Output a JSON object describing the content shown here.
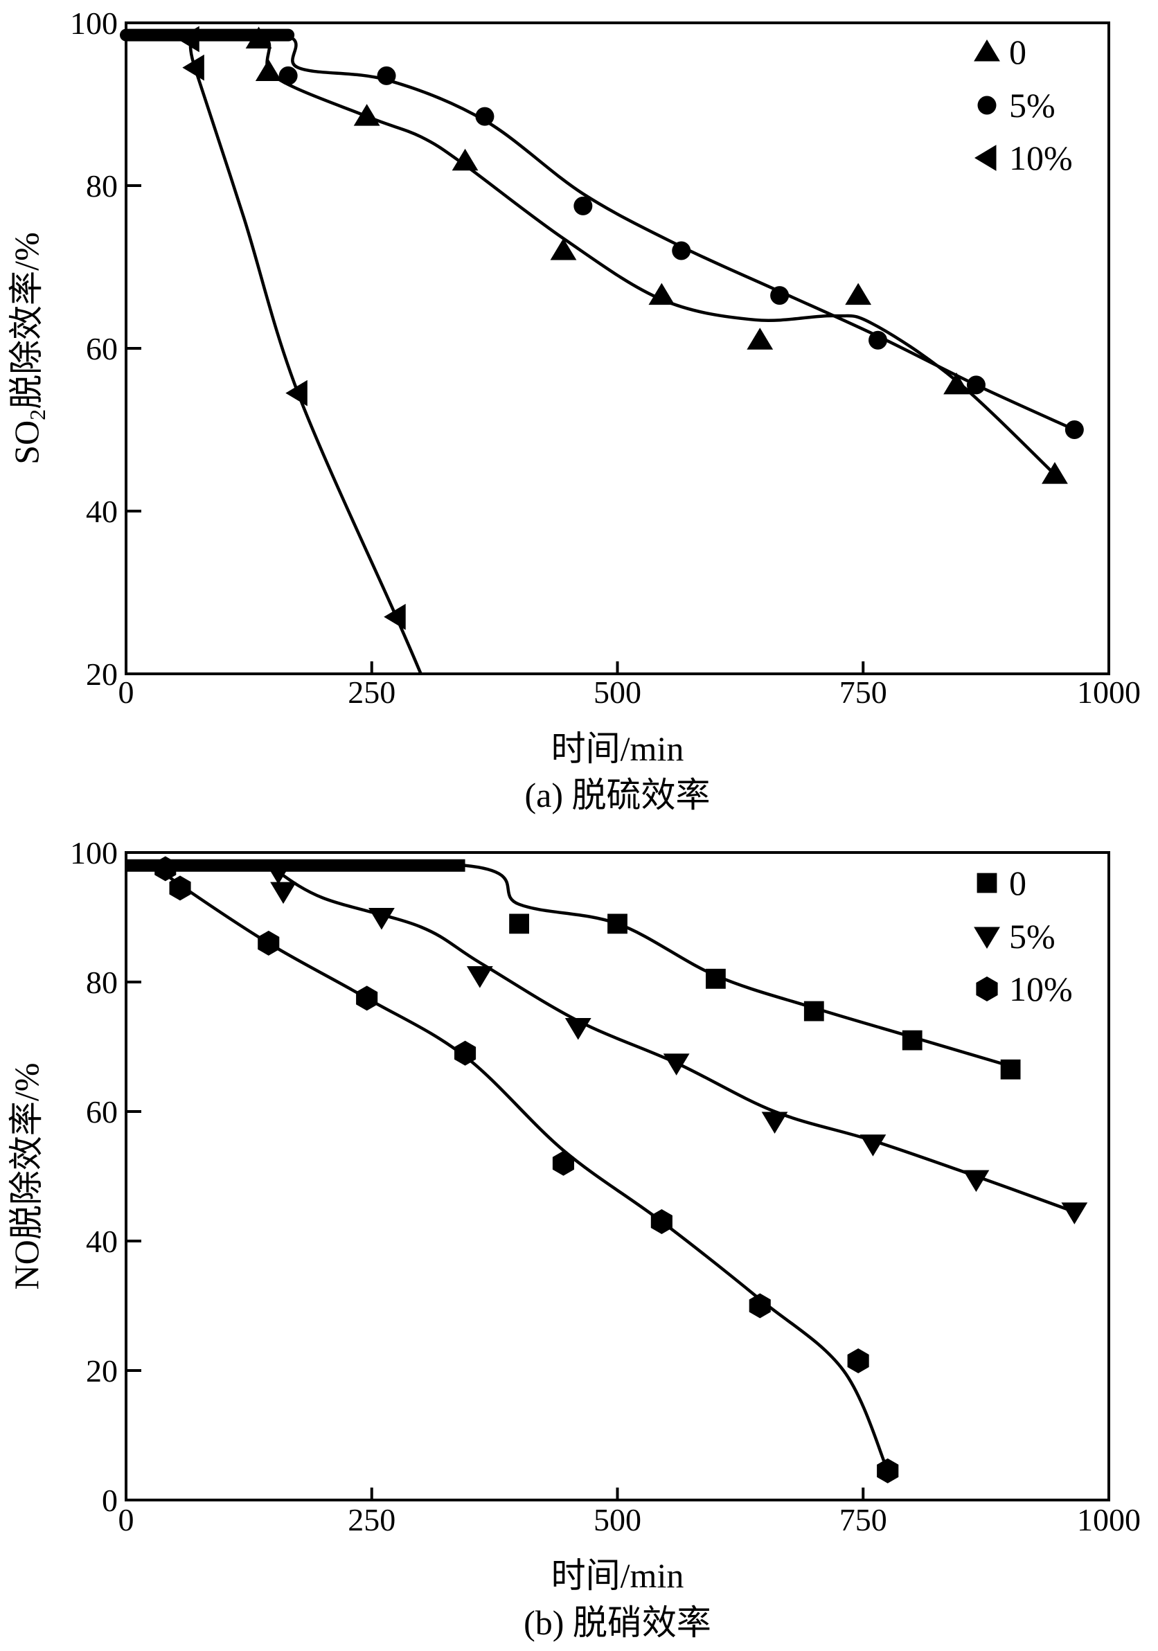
{
  "chart_data": [
    {
      "type": "line",
      "title": "(a) 脱硫效率",
      "xlabel": "时间/min",
      "ylabel": "SO2脱除效率/%",
      "ylabel_main": "SO",
      "ylabel_sub": "2",
      "ylabel_rest": "脱除效率/%",
      "xlim": [
        0,
        1000
      ],
      "ylim": [
        20,
        100
      ],
      "xticks": [
        0,
        250,
        500,
        750,
        1000
      ],
      "yticks": [
        20,
        40,
        60,
        80,
        100
      ],
      "legend_position": "top-right",
      "series": [
        {
          "name": "0",
          "marker": "triangle-up",
          "points": [
            [
              135,
              98
            ],
            [
              145,
              94
            ],
            [
              245,
              88.5
            ],
            [
              345,
              83
            ],
            [
              445,
              72
            ],
            [
              545,
              66.5
            ],
            [
              645,
              61
            ],
            [
              745,
              66.5
            ],
            [
              845,
              55.5
            ],
            [
              945,
              44.5
            ]
          ],
          "curve": [
            [
              0,
              98.5
            ],
            [
              135,
              98.5
            ],
            [
              150,
              93.5
            ],
            [
              245,
              88.5
            ],
            [
              300,
              86
            ],
            [
              345,
              82.5
            ],
            [
              445,
              73.5
            ],
            [
              545,
              66
            ],
            [
              640,
              63.5
            ],
            [
              720,
              64
            ],
            [
              760,
              63
            ],
            [
              845,
              56
            ],
            [
              945,
              44.5
            ]
          ]
        },
        {
          "name": "5%",
          "marker": "circle",
          "points": [
            [
              165,
              93.5
            ],
            [
              265,
              93.5
            ],
            [
              365,
              88.5
            ],
            [
              465,
              77.5
            ],
            [
              565,
              72
            ],
            [
              665,
              66.5
            ],
            [
              765,
              61
            ],
            [
              865,
              55.5
            ],
            [
              965,
              50
            ]
          ],
          "curve": [
            [
              0,
              98.5
            ],
            [
              160,
              98.5
            ],
            [
              175,
              94.5
            ],
            [
              265,
              93
            ],
            [
              365,
              88
            ],
            [
              465,
              79
            ],
            [
              565,
              72.5
            ],
            [
              665,
              67
            ],
            [
              765,
              61.5
            ],
            [
              865,
              55.5
            ],
            [
              965,
              50
            ]
          ]
        },
        {
          "name": "10%",
          "marker": "triangle-left",
          "points": [
            [
              65,
              98
            ],
            [
              70,
              94.5
            ],
            [
              175,
              54.5
            ],
            [
              275,
              27
            ]
          ],
          "curve": [
            [
              0,
              98.5
            ],
            [
              60,
              98.5
            ],
            [
              70,
              94.5
            ],
            [
              120,
              76
            ],
            [
              175,
              54.5
            ],
            [
              275,
              27
            ],
            [
              300,
              20
            ]
          ]
        }
      ]
    },
    {
      "type": "line",
      "title": "(b) 脱硝效率",
      "xlabel": "时间/min",
      "ylabel": "NO脱除效率/%",
      "xlim": [
        0,
        1000
      ],
      "ylim": [
        0,
        100
      ],
      "xticks": [
        0,
        250,
        500,
        750,
        1000
      ],
      "yticks": [
        0,
        20,
        40,
        60,
        80,
        100
      ],
      "legend_position": "top-right",
      "series": [
        {
          "name": "0",
          "marker": "square",
          "points": [
            [
              400,
              89
            ],
            [
              500,
              89
            ],
            [
              600,
              80.5
            ],
            [
              700,
              75.5
            ],
            [
              800,
              71
            ],
            [
              900,
              66.5
            ]
          ],
          "curve": [
            [
              0,
              98
            ],
            [
              345,
              98
            ],
            [
              400,
              92
            ],
            [
              500,
              89
            ],
            [
              600,
              81
            ],
            [
              700,
              76
            ],
            [
              800,
              71.5
            ],
            [
              900,
              67
            ]
          ]
        },
        {
          "name": "5%",
          "marker": "triangle-down",
          "points": [
            [
              155,
              97
            ],
            [
              160,
              94
            ],
            [
              260,
              90
            ],
            [
              360,
              81
            ],
            [
              460,
              73
            ],
            [
              560,
              67.5
            ],
            [
              660,
              58.5
            ],
            [
              760,
              55
            ],
            [
              865,
              49.5
            ],
            [
              965,
              44.5
            ]
          ],
          "curve": [
            [
              150,
              97.5
            ],
            [
              200,
              93
            ],
            [
              300,
              88.5
            ],
            [
              360,
              83
            ],
            [
              460,
              74
            ],
            [
              560,
              67.5
            ],
            [
              660,
              60
            ],
            [
              760,
              55.5
            ],
            [
              865,
              50
            ],
            [
              965,
              44.5
            ]
          ]
        },
        {
          "name": "10%",
          "marker": "hexagon",
          "points": [
            [
              40,
              97.5
            ],
            [
              55,
              94.5
            ],
            [
              145,
              86
            ],
            [
              245,
              77.5
            ],
            [
              345,
              69
            ],
            [
              445,
              52
            ],
            [
              545,
              43
            ],
            [
              645,
              30
            ],
            [
              745,
              21.5
            ],
            [
              775,
              4.5
            ]
          ],
          "curve": [
            [
              30,
              98
            ],
            [
              55,
              95
            ],
            [
              145,
              86
            ],
            [
              245,
              77.5
            ],
            [
              345,
              68.5
            ],
            [
              445,
              54
            ],
            [
              545,
              43
            ],
            [
              645,
              31
            ],
            [
              730,
              20
            ],
            [
              775,
              4.5
            ]
          ]
        }
      ]
    }
  ]
}
